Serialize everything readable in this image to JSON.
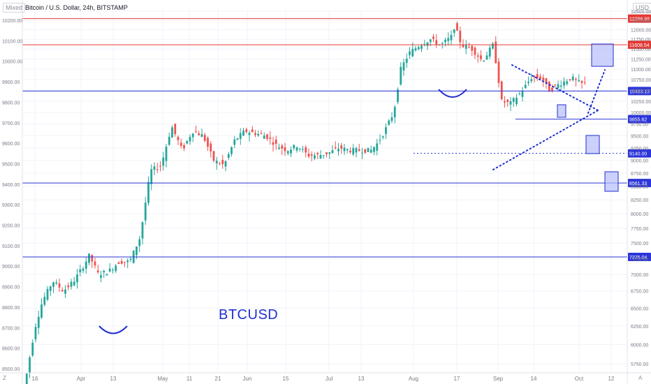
{
  "header": {
    "scale_mode": "Mixed",
    "title": "Bitcoin / U.S. Dollar, 24h, BITSTAMP",
    "currency": "USD"
  },
  "annotation": {
    "ticker": "BTCUSD"
  },
  "corner_left": "Z",
  "corner_right": "A",
  "colors": {
    "up_candle": "#26a69a",
    "down_candle": "#ef5350",
    "resistance_line": "#e53935",
    "support_line": "#2c35d8",
    "drawing": "#1f2fd0",
    "box_fill": "#b7befa",
    "axis_text": "#787b86",
    "grid": "#f0f3fa"
  },
  "chart_data": {
    "type": "candlestick",
    "left_axis": {
      "range": [
        8480,
        10250
      ],
      "ticks": [
        "10200.00",
        "10100.00",
        "10000.00",
        "9900.00",
        "9800.00",
        "9700.00",
        "9600.00",
        "9500.00",
        "9400.00",
        "9300.00",
        "9200.00",
        "9100.00",
        "9000.00",
        "8900.00",
        "8800.00",
        "8700.00",
        "8600.00",
        "8500.00"
      ]
    },
    "right_axis": {
      "scale": "log",
      "ticks": [
        "12500.00",
        "12250.00",
        "12000.00",
        "11750.00",
        "11500.00",
        "11250.00",
        "11000.00",
        "10750.00",
        "10500.00",
        "10250.00",
        "10000.00",
        "9750.00",
        "9500.00",
        "9250.00",
        "9000.00",
        "8750.00",
        "8500.00",
        "8250.00",
        "8000.00",
        "7750.00",
        "7500.00",
        "7250.00",
        "7000.00",
        "6750.00",
        "6500.00",
        "6250.00",
        "6000.00",
        "5750.00"
      ]
    },
    "x_axis": {
      "labels": [
        "16",
        "Apr",
        "13",
        "May",
        "11",
        "21",
        "Jun",
        "15",
        "Jul",
        "13",
        "Aug",
        "17",
        "Sep",
        "14",
        "Oct",
        "12"
      ]
    },
    "price_labels": [
      {
        "value": "12296.98",
        "kind": "resistance"
      },
      {
        "value": "11608.54",
        "kind": "resistance"
      },
      {
        "value": "10483.13",
        "kind": "support"
      },
      {
        "value": "9855.62",
        "kind": "support"
      },
      {
        "value": "9140.00",
        "kind": "target"
      },
      {
        "value": "8561.33",
        "kind": "support"
      },
      {
        "value": "7275.04",
        "kind": "support"
      }
    ],
    "series": [
      {
        "type": "candlestick",
        "ohlc_key_points": [
          [
            "mid-Mar",
            5300,
            6800
          ],
          [
            "Apr",
            6800,
            7300
          ],
          [
            "May",
            8800,
            9800
          ],
          [
            "Jun",
            9300,
            10000
          ],
          [
            "Jul",
            9100,
            9300
          ],
          [
            "late-Jul",
            9500,
            11100
          ],
          [
            "mid-Aug",
            11400,
            12300
          ],
          [
            "early-Sep",
            10100,
            11900
          ],
          [
            "late-Sep",
            10300,
            10900
          ]
        ]
      }
    ],
    "drawings": [
      "horizontal support/resistance lines",
      "triangle trendlines",
      "projection boxes",
      "arcs"
    ]
  }
}
